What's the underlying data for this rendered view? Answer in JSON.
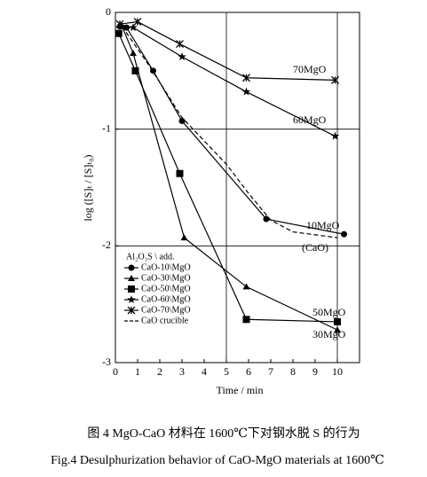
{
  "chart_data": {
    "type": "line",
    "x_label": "Time / min",
    "y_label": "log ([S]ₜ / [S]ₜ₀)",
    "xlim": [
      0,
      11
    ],
    "ylim": [
      -3,
      0
    ],
    "xticks": [
      0,
      1,
      2,
      3,
      4,
      5,
      6,
      7,
      8,
      9,
      10
    ],
    "yticks": [
      0,
      -1,
      -2,
      -3
    ],
    "grid_x": [
      5,
      10
    ],
    "grid_y": [
      -1,
      -2
    ],
    "legend": "lower left",
    "legend_title": "Al₂O₃S \\ add.",
    "series": [
      {
        "name": "CaO-10\\MgO",
        "color": "#000000",
        "marker": "circle",
        "dash": false,
        "x": [
          0.2,
          0.5,
          1.7,
          3,
          6.8,
          10.3
        ],
        "values": [
          -0.12,
          -0.13,
          -0.5,
          -0.93,
          -1.77,
          -1.9
        ]
      },
      {
        "name": "CaO-30\\MgO",
        "color": "#000000",
        "marker": "triangle",
        "dash": false,
        "x": [
          0.3,
          0.8,
          3.1,
          5.9,
          10
        ],
        "values": [
          -0.12,
          -0.35,
          -1.93,
          -2.35,
          -2.72
        ]
      },
      {
        "name": "CaO-50\\MgO",
        "color": "#000000",
        "marker": "square",
        "dash": false,
        "x": [
          0.15,
          0.9,
          2.9,
          5.9,
          10
        ],
        "values": [
          -0.18,
          -0.5,
          -1.38,
          -2.63,
          -2.65
        ]
      },
      {
        "name": "CaO-60\\MgO",
        "color": "#000000",
        "marker": "star",
        "dash": false,
        "x": [
          0.3,
          0.8,
          3,
          5.9,
          9.9
        ],
        "values": [
          -0.12,
          -0.13,
          -0.38,
          -0.68,
          -1.06
        ]
      },
      {
        "name": "CaO-70\\MgO",
        "color": "#000000",
        "marker": "cross",
        "dash": false,
        "x": [
          0.2,
          1,
          2.9,
          5.9,
          9.9
        ],
        "values": [
          -0.1,
          -0.08,
          -0.27,
          -0.56,
          -0.58
        ]
      },
      {
        "name": "CaO crucible",
        "color": "#000000",
        "marker": "none",
        "dash": true,
        "x": [
          0.3,
          1.5,
          3,
          5,
          6,
          7,
          8,
          10
        ],
        "values": [
          -0.12,
          -0.45,
          -0.9,
          -1.3,
          -1.55,
          -1.78,
          -1.88,
          -1.93
        ]
      }
    ],
    "annotations": [
      "70MgO",
      "60MgO",
      "10MgO",
      "(CaO)",
      "50MgO",
      "30MgO"
    ],
    "caption_cn": "图 4   MgO-CaO 材料在 1600℃下对钢水脱 S 的行为",
    "caption_en": "Fig.4   Desulphurization behavior of CaO-MgO materials at 1600℃"
  }
}
